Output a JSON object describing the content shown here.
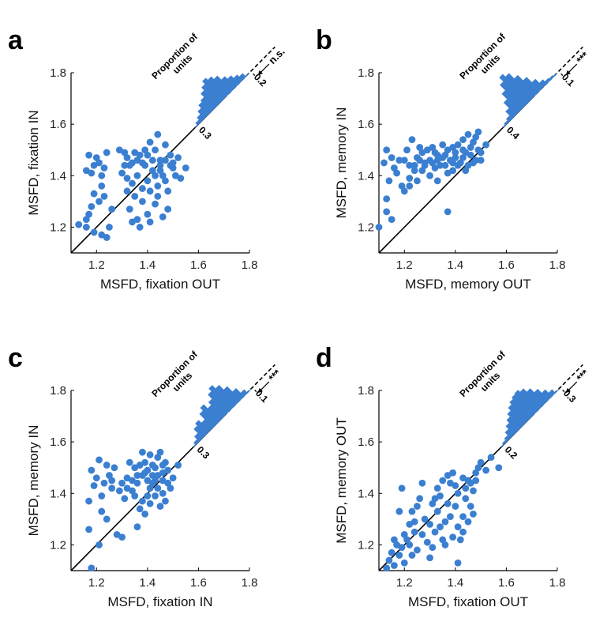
{
  "colors": {
    "marker": "#3b7fd1",
    "axis": "#000000",
    "text": "#222222"
  },
  "histogram_title": "Proportion of units",
  "histogram_title_lines": [
    "Proportion of",
    "units"
  ],
  "chart_data": [
    {
      "type": "scatter",
      "panel": "a",
      "xlabel": "MSFD, fixation OUT",
      "ylabel": "MSFD, fixation IN",
      "xlim": [
        1.1,
        1.8
      ],
      "ylim": [
        1.1,
        1.8
      ],
      "xticks": [
        "1.2",
        "1.4",
        "1.6",
        "1.8"
      ],
      "yticks": [
        "1.2",
        "1.4",
        "1.6",
        "1.8"
      ],
      "hist_top_label": "0.3",
      "hist_bottom_label": "-0.2",
      "significance": "n.s.",
      "hist_bins": [
        0.03,
        0.06,
        0.1,
        0.14,
        0.16,
        0.21,
        0.25,
        0.29,
        0.26,
        0.22,
        0.16,
        0.12,
        0.08,
        0.05
      ],
      "points": [
        [
          1.17,
          1.48
        ],
        [
          1.19,
          1.44
        ],
        [
          1.16,
          1.42
        ],
        [
          1.21,
          1.45
        ],
        [
          1.23,
          1.43
        ],
        [
          1.2,
          1.47
        ],
        [
          1.24,
          1.49
        ],
        [
          1.18,
          1.41
        ],
        [
          1.22,
          1.36
        ],
        [
          1.19,
          1.33
        ],
        [
          1.18,
          1.28
        ],
        [
          1.17,
          1.25
        ],
        [
          1.16,
          1.23
        ],
        [
          1.16,
          1.2
        ],
        [
          1.19,
          1.18
        ],
        [
          1.22,
          1.17
        ],
        [
          1.24,
          1.16
        ],
        [
          1.22,
          1.4
        ],
        [
          1.13,
          1.21
        ],
        [
          1.25,
          1.2
        ],
        [
          1.21,
          1.3
        ],
        [
          1.23,
          1.32
        ],
        [
          1.26,
          1.27
        ],
        [
          1.29,
          1.5
        ],
        [
          1.31,
          1.49
        ],
        [
          1.32,
          1.47
        ],
        [
          1.33,
          1.44
        ],
        [
          1.35,
          1.49
        ],
        [
          1.36,
          1.46
        ],
        [
          1.38,
          1.45
        ],
        [
          1.4,
          1.48
        ],
        [
          1.41,
          1.53
        ],
        [
          1.43,
          1.5
        ],
        [
          1.44,
          1.56
        ],
        [
          1.45,
          1.46
        ],
        [
          1.47,
          1.52
        ],
        [
          1.49,
          1.48
        ],
        [
          1.3,
          1.41
        ],
        [
          1.32,
          1.39
        ],
        [
          1.34,
          1.37
        ],
        [
          1.36,
          1.4
        ],
        [
          1.38,
          1.35
        ],
        [
          1.4,
          1.38
        ],
        [
          1.42,
          1.42
        ],
        [
          1.44,
          1.36
        ],
        [
          1.46,
          1.4
        ],
        [
          1.48,
          1.34
        ],
        [
          1.5,
          1.43
        ],
        [
          1.33,
          1.27
        ],
        [
          1.34,
          1.22
        ],
        [
          1.37,
          1.2
        ],
        [
          1.4,
          1.25
        ],
        [
          1.41,
          1.22
        ],
        [
          1.43,
          1.29
        ],
        [
          1.46,
          1.24
        ],
        [
          1.48,
          1.27
        ],
        [
          1.38,
          1.3
        ],
        [
          1.36,
          1.23
        ],
        [
          1.39,
          1.44
        ],
        [
          1.42,
          1.46
        ],
        [
          1.45,
          1.44
        ],
        [
          1.47,
          1.46
        ],
        [
          1.5,
          1.45
        ],
        [
          1.52,
          1.47
        ],
        [
          1.55,
          1.43
        ],
        [
          1.37,
          1.48
        ],
        [
          1.39,
          1.5
        ],
        [
          1.34,
          1.45
        ],
        [
          1.31,
          1.44
        ],
        [
          1.43,
          1.4
        ],
        [
          1.45,
          1.42
        ],
        [
          1.47,
          1.38
        ],
        [
          1.41,
          1.34
        ],
        [
          1.44,
          1.32
        ],
        [
          1.35,
          1.32
        ],
        [
          1.32,
          1.34
        ],
        [
          1.49,
          1.44
        ],
        [
          1.51,
          1.4
        ],
        [
          1.53,
          1.39
        ]
      ]
    },
    {
      "type": "scatter",
      "panel": "b",
      "xlabel": "MSFD, memory OUT",
      "ylabel": "MSFD, memory IN",
      "xlim": [
        1.1,
        1.8
      ],
      "ylim": [
        1.1,
        1.8
      ],
      "xticks": [
        "1.2",
        "1.4",
        "1.6",
        "1.8"
      ],
      "yticks": [
        "1.2",
        "1.4",
        "1.6",
        "1.8"
      ],
      "hist_top_label": "0.4",
      "hist_bottom_label": "-0.1",
      "significance": "***",
      "hist_bins": [
        0.02,
        0.04,
        0.1,
        0.18,
        0.26,
        0.34,
        0.4,
        0.36,
        0.28,
        0.2,
        0.12,
        0.06,
        0.03,
        0.02
      ],
      "points": [
        [
          1.1,
          1.2
        ],
        [
          1.13,
          1.26
        ],
        [
          1.13,
          1.31
        ],
        [
          1.15,
          1.23
        ],
        [
          1.14,
          1.38
        ],
        [
          1.12,
          1.45
        ],
        [
          1.15,
          1.47
        ],
        [
          1.13,
          1.5
        ],
        [
          1.17,
          1.41
        ],
        [
          1.19,
          1.36
        ],
        [
          1.2,
          1.46
        ],
        [
          1.22,
          1.44
        ],
        [
          1.22,
          1.39
        ],
        [
          1.24,
          1.42
        ],
        [
          1.25,
          1.47
        ],
        [
          1.27,
          1.49
        ],
        [
          1.28,
          1.45
        ],
        [
          1.3,
          1.46
        ],
        [
          1.32,
          1.43
        ],
        [
          1.33,
          1.48
        ],
        [
          1.35,
          1.47
        ],
        [
          1.36,
          1.44
        ],
        [
          1.38,
          1.46
        ],
        [
          1.4,
          1.49
        ],
        [
          1.42,
          1.45
        ],
        [
          1.43,
          1.47
        ],
        [
          1.45,
          1.44
        ],
        [
          1.46,
          1.48
        ],
        [
          1.47,
          1.53
        ],
        [
          1.49,
          1.5
        ],
        [
          1.48,
          1.46
        ],
        [
          1.5,
          1.49
        ],
        [
          1.52,
          1.52
        ],
        [
          1.45,
          1.56
        ],
        [
          1.43,
          1.54
        ],
        [
          1.41,
          1.52
        ],
        [
          1.39,
          1.51
        ],
        [
          1.37,
          1.5
        ],
        [
          1.35,
          1.52
        ],
        [
          1.31,
          1.51
        ],
        [
          1.29,
          1.5
        ],
        [
          1.26,
          1.51
        ],
        [
          1.23,
          1.54
        ],
        [
          1.21,
          1.5
        ],
        [
          1.27,
          1.42
        ],
        [
          1.3,
          1.4
        ],
        [
          1.33,
          1.38
        ],
        [
          1.34,
          1.44
        ],
        [
          1.37,
          1.41
        ],
        [
          1.39,
          1.42
        ],
        [
          1.41,
          1.44
        ],
        [
          1.44,
          1.42
        ],
        [
          1.47,
          1.45
        ],
        [
          1.25,
          1.38
        ],
        [
          1.22,
          1.36
        ],
        [
          1.2,
          1.34
        ],
        [
          1.24,
          1.44
        ],
        [
          1.28,
          1.44
        ],
        [
          1.31,
          1.45
        ],
        [
          1.36,
          1.48
        ],
        [
          1.4,
          1.47
        ],
        [
          1.44,
          1.49
        ],
        [
          1.46,
          1.51
        ],
        [
          1.48,
          1.55
        ],
        [
          1.49,
          1.57
        ],
        [
          1.37,
          1.26
        ],
        [
          1.18,
          1.46
        ],
        [
          1.16,
          1.43
        ],
        [
          1.26,
          1.46
        ],
        [
          1.33,
          1.46
        ],
        [
          1.43,
          1.5
        ],
        [
          1.5,
          1.46
        ],
        [
          1.32,
          1.49
        ],
        [
          1.39,
          1.45
        ]
      ]
    },
    {
      "type": "scatter",
      "panel": "c",
      "xlabel": "MSFD, fixation IN",
      "ylabel": "MSFD, memory IN",
      "xlim": [
        1.1,
        1.8
      ],
      "ylim": [
        1.1,
        1.8
      ],
      "xticks": [
        "1.2",
        "1.4",
        "1.6",
        "1.8"
      ],
      "yticks": [
        "1.2",
        "1.4",
        "1.6",
        "1.8"
      ],
      "hist_top_label": "0.3",
      "hist_bottom_label": "-0.1",
      "significance": "***",
      "hist_bins": [
        0.03,
        0.07,
        0.13,
        0.16,
        0.12,
        0.2,
        0.24,
        0.18,
        0.22,
        0.28,
        0.32,
        0.27,
        0.2,
        0.12,
        0.05
      ],
      "points": [
        [
          1.17,
          1.26
        ],
        [
          1.18,
          1.11
        ],
        [
          1.21,
          1.2
        ],
        [
          1.17,
          1.37
        ],
        [
          1.18,
          1.49
        ],
        [
          1.2,
          1.46
        ],
        [
          1.19,
          1.43
        ],
        [
          1.22,
          1.39
        ],
        [
          1.22,
          1.33
        ],
        [
          1.24,
          1.3
        ],
        [
          1.23,
          1.44
        ],
        [
          1.21,
          1.53
        ],
        [
          1.24,
          1.51
        ],
        [
          1.25,
          1.47
        ],
        [
          1.26,
          1.45
        ],
        [
          1.27,
          1.5
        ],
        [
          1.28,
          1.24
        ],
        [
          1.3,
          1.23
        ],
        [
          1.3,
          1.44
        ],
        [
          1.32,
          1.46
        ],
        [
          1.33,
          1.52
        ],
        [
          1.34,
          1.45
        ],
        [
          1.35,
          1.5
        ],
        [
          1.36,
          1.47
        ],
        [
          1.37,
          1.51
        ],
        [
          1.38,
          1.56
        ],
        [
          1.39,
          1.52
        ],
        [
          1.4,
          1.49
        ],
        [
          1.41,
          1.55
        ],
        [
          1.42,
          1.51
        ],
        [
          1.43,
          1.5
        ],
        [
          1.44,
          1.54
        ],
        [
          1.45,
          1.56
        ],
        [
          1.46,
          1.48
        ],
        [
          1.47,
          1.52
        ],
        [
          1.48,
          1.49
        ],
        [
          1.5,
          1.46
        ],
        [
          1.52,
          1.51
        ],
        [
          1.36,
          1.27
        ],
        [
          1.37,
          1.34
        ],
        [
          1.38,
          1.37
        ],
        [
          1.39,
          1.32
        ],
        [
          1.4,
          1.39
        ],
        [
          1.41,
          1.36
        ],
        [
          1.42,
          1.44
        ],
        [
          1.43,
          1.39
        ],
        [
          1.44,
          1.42
        ],
        [
          1.45,
          1.35
        ],
        [
          1.46,
          1.4
        ],
        [
          1.47,
          1.37
        ],
        [
          1.48,
          1.44
        ],
        [
          1.49,
          1.42
        ],
        [
          1.32,
          1.42
        ],
        [
          1.34,
          1.41
        ],
        [
          1.36,
          1.44
        ],
        [
          1.38,
          1.47
        ],
        [
          1.4,
          1.45
        ],
        [
          1.42,
          1.47
        ],
        [
          1.44,
          1.47
        ],
        [
          1.46,
          1.45
        ],
        [
          1.35,
          1.39
        ],
        [
          1.31,
          1.38
        ],
        [
          1.29,
          1.41
        ],
        [
          1.26,
          1.42
        ],
        [
          1.41,
          1.42
        ],
        [
          1.43,
          1.45
        ],
        [
          1.39,
          1.48
        ],
        [
          1.46,
          1.51
        ]
      ]
    },
    {
      "type": "scatter",
      "panel": "d",
      "xlabel": "MSFD, fixation OUT",
      "ylabel": "MSFD, memory OUT",
      "xlim": [
        1.1,
        1.8
      ],
      "ylim": [
        1.1,
        1.8
      ],
      "xticks": [
        "1.2",
        "1.4",
        "1.6",
        "1.8"
      ],
      "yticks": [
        "1.2",
        "1.4",
        "1.6",
        "1.8"
      ],
      "hist_top_label": "0.2",
      "hist_bottom_label": "-0.3",
      "significance": "***",
      "hist_bins": [
        0.02,
        0.04,
        0.08,
        0.12,
        0.16,
        0.2,
        0.24,
        0.27,
        0.29,
        0.3,
        0.27,
        0.22,
        0.16,
        0.1,
        0.05
      ],
      "points": [
        [
          1.13,
          1.11
        ],
        [
          1.14,
          1.14
        ],
        [
          1.16,
          1.12
        ],
        [
          1.15,
          1.17
        ],
        [
          1.17,
          1.2
        ],
        [
          1.16,
          1.22
        ],
        [
          1.18,
          1.16
        ],
        [
          1.19,
          1.19
        ],
        [
          1.2,
          1.13
        ],
        [
          1.21,
          1.22
        ],
        [
          1.22,
          1.2
        ],
        [
          1.23,
          1.16
        ],
        [
          1.24,
          1.25
        ],
        [
          1.25,
          1.18
        ],
        [
          1.18,
          1.33
        ],
        [
          1.19,
          1.42
        ],
        [
          1.22,
          1.28
        ],
        [
          1.23,
          1.33
        ],
        [
          1.25,
          1.35
        ],
        [
          1.26,
          1.38
        ],
        [
          1.27,
          1.44
        ],
        [
          1.28,
          1.3
        ],
        [
          1.29,
          1.21
        ],
        [
          1.3,
          1.28
        ],
        [
          1.31,
          1.36
        ],
        [
          1.32,
          1.25
        ],
        [
          1.33,
          1.33
        ],
        [
          1.34,
          1.39
        ],
        [
          1.35,
          1.22
        ],
        [
          1.36,
          1.29
        ],
        [
          1.37,
          1.36
        ],
        [
          1.38,
          1.44
        ],
        [
          1.39,
          1.48
        ],
        [
          1.4,
          1.43
        ],
        [
          1.41,
          1.27
        ],
        [
          1.42,
          1.22
        ],
        [
          1.43,
          1.31
        ],
        [
          1.44,
          1.38
        ],
        [
          1.45,
          1.45
        ],
        [
          1.46,
          1.35
        ],
        [
          1.47,
          1.41
        ],
        [
          1.48,
          1.48
        ],
        [
          1.49,
          1.5
        ],
        [
          1.5,
          1.52
        ],
        [
          1.52,
          1.49
        ],
        [
          1.54,
          1.54
        ],
        [
          1.57,
          1.5
        ],
        [
          1.41,
          1.13
        ],
        [
          1.3,
          1.15
        ],
        [
          1.36,
          1.2
        ],
        [
          1.39,
          1.23
        ],
        [
          1.43,
          1.25
        ],
        [
          1.45,
          1.29
        ],
        [
          1.47,
          1.32
        ],
        [
          1.33,
          1.42
        ],
        [
          1.35,
          1.45
        ],
        [
          1.37,
          1.47
        ],
        [
          1.41,
          1.4
        ],
        [
          1.43,
          1.46
        ],
        [
          1.46,
          1.44
        ],
        [
          1.32,
          1.38
        ],
        [
          1.34,
          1.27
        ],
        [
          1.38,
          1.31
        ],
        [
          1.4,
          1.35
        ],
        [
          1.44,
          1.42
        ],
        [
          1.48,
          1.45
        ],
        [
          1.31,
          1.19
        ],
        [
          1.27,
          1.24
        ],
        [
          1.24,
          1.29
        ],
        [
          1.2,
          1.24
        ]
      ]
    }
  ]
}
